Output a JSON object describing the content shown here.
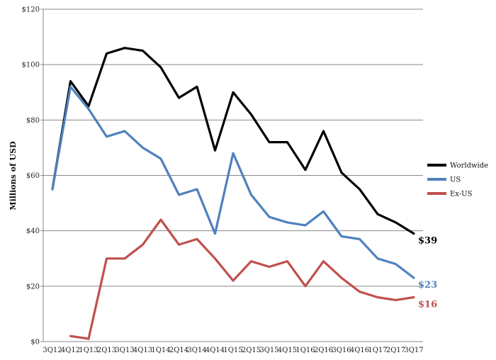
{
  "chart_data": {
    "type": "line",
    "ylabel": "Millions of USD",
    "xlabel": "",
    "ylim": [
      0,
      120
    ],
    "yticks": [
      0,
      20,
      40,
      60,
      80,
      100,
      120
    ],
    "ytick_labels": [
      "$0",
      "$20",
      "$40",
      "$60",
      "$80",
      "$100",
      "$120"
    ],
    "grid": "horizontal",
    "legend_position": "right",
    "categories": [
      "3Q12",
      "4Q12",
      "1Q13",
      "2Q13",
      "3Q13",
      "4Q13",
      "1Q14",
      "2Q14",
      "3Q14",
      "4Q14",
      "1Q15",
      "2Q15",
      "3Q15",
      "4Q15",
      "1Q16",
      "2Q16",
      "3Q16",
      "4Q16",
      "1Q17",
      "2Q17",
      "3Q17"
    ],
    "series": [
      {
        "name": "Worldwide",
        "color": "#000000",
        "values": [
          55,
          94,
          85,
          104,
          106,
          105,
          99,
          88,
          92,
          69,
          90,
          82,
          72,
          72,
          62,
          76,
          61,
          55,
          46,
          43,
          39
        ],
        "end_label": "$39"
      },
      {
        "name": "US",
        "color": "#4f81bd",
        "values": [
          55,
          92,
          84,
          74,
          76,
          70,
          66,
          53,
          55,
          39,
          68,
          53,
          45,
          43,
          42,
          47,
          38,
          37,
          30,
          28,
          23
        ],
        "end_label": "$23"
      },
      {
        "name": "Ex-US",
        "color": "#c0504d",
        "values": [
          null,
          2,
          1,
          30,
          30,
          35,
          44,
          35,
          37,
          30,
          22,
          29,
          27,
          29,
          20,
          29,
          23,
          18,
          16,
          15,
          16
        ],
        "end_label": "$16"
      }
    ]
  }
}
